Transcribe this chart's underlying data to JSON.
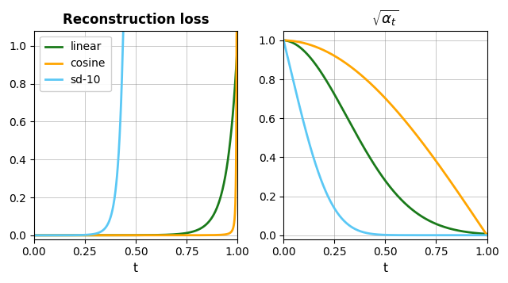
{
  "title_left": "Reconstruction loss",
  "title_right": "$\\sqrt{\\alpha_t}$",
  "xlabel": "t",
  "line_colors": {
    "linear": "#1a7a1a",
    "cosine": "#ffa500",
    "sd10": "#5bc8f5"
  },
  "legend_labels": [
    "linear",
    "cosine",
    "sd-10"
  ],
  "ylim_left": [
    -0.02,
    1.08
  ],
  "ylim_right": [
    -0.02,
    1.05
  ],
  "xlim": [
    0.0,
    1.0
  ]
}
